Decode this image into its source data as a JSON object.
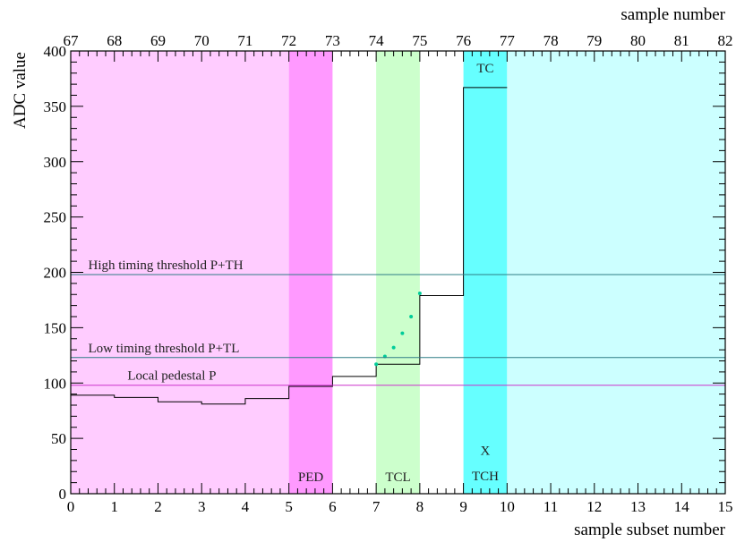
{
  "chart_data": {
    "type": "line",
    "x_axis": {
      "label": "sample subset number",
      "range": [
        0,
        15
      ],
      "ticks": [
        0,
        1,
        2,
        3,
        4,
        5,
        6,
        7,
        8,
        9,
        10,
        11,
        12,
        13,
        14,
        15
      ]
    },
    "x2_axis": {
      "label": "sample number",
      "ticks": [
        67,
        68,
        69,
        70,
        71,
        72,
        73,
        74,
        75,
        76,
        77,
        78,
        79,
        80,
        81,
        82
      ]
    },
    "y_axis": {
      "label": "ADC value",
      "range": [
        0,
        400
      ],
      "ticks": [
        0,
        50,
        100,
        150,
        200,
        250,
        300,
        350,
        400
      ]
    },
    "regions": [
      {
        "x": [
          0,
          5
        ],
        "color": "#ffccff",
        "label": ""
      },
      {
        "x": [
          5,
          6
        ],
        "color": "#ff99ff",
        "label": "PED"
      },
      {
        "x": [
          7,
          8
        ],
        "color": "#ccffcc",
        "label": "TCL"
      },
      {
        "x": [
          9,
          10
        ],
        "color": "#66ffff",
        "label": "TC"
      },
      {
        "x": [
          10,
          15
        ],
        "color": "#ccffff",
        "label": ""
      }
    ],
    "region_extra_labels": [
      {
        "x": 9.5,
        "y": 35,
        "text": "X"
      },
      {
        "x": 9.5,
        "y": 12,
        "text": "TCH"
      }
    ],
    "series": [
      {
        "kind": "step",
        "color": "#000000",
        "x_edges": [
          0,
          1,
          2,
          3,
          4,
          5,
          6,
          7,
          8,
          9,
          10
        ],
        "values": [
          89,
          87,
          83,
          81,
          86,
          97,
          106,
          117,
          179,
          367
        ]
      },
      {
        "kind": "points",
        "color": "#00cc99",
        "x": [
          7.0,
          7.2,
          7.4,
          7.6,
          7.8,
          8.0
        ],
        "y": [
          117,
          124,
          132,
          145,
          160,
          181
        ]
      }
    ],
    "thresholds": [
      {
        "y": 198,
        "color": "#2e7d86",
        "label": "High timing threshold P+TH",
        "label_x": 0.4
      },
      {
        "y": 123,
        "color": "#2e7d86",
        "label": "Low timing threshold P+TL",
        "label_x": 0.4
      },
      {
        "y": 98,
        "color": "#cc33cc",
        "label": "Local pedestal P",
        "label_x": 1.3
      }
    ],
    "grid": false
  }
}
